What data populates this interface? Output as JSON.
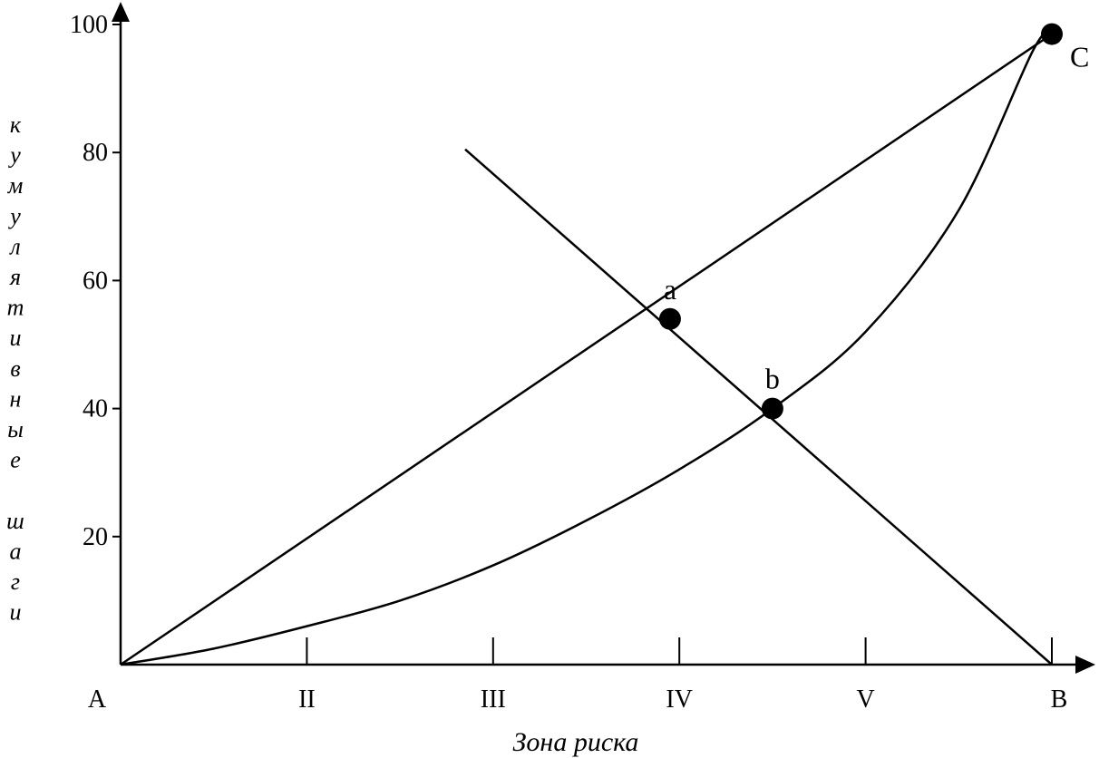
{
  "chart_data": {
    "type": "line",
    "title": "",
    "xlabel": "Зона риска",
    "ylabel": "кумулятивные шаги",
    "ylabel_letters": [
      "к",
      "у",
      "м",
      "у",
      "л",
      "я",
      "т",
      "и",
      "в",
      "н",
      "ы",
      "е",
      "",
      "ш",
      "а",
      "г",
      "и"
    ],
    "xlim": [
      1,
      6
    ],
    "ylim": [
      0,
      100
    ],
    "y_ticks": [
      20,
      40,
      60,
      80,
      100
    ],
    "y_tick_labels": [
      "20",
      "40",
      "60",
      "80",
      "100"
    ],
    "x_ticks": [
      1,
      2,
      3,
      4,
      5,
      6
    ],
    "x_tick_labels": [
      "A",
      "II",
      "III",
      "IV",
      "V",
      "B"
    ],
    "grid": false,
    "series": [
      {
        "points": [
          [
            1,
            0
          ],
          [
            6,
            98.5
          ]
        ]
      },
      {
        "points": [
          [
            1,
            0
          ],
          [
            1.5,
            2.5
          ],
          [
            2,
            6
          ],
          [
            2.5,
            10
          ],
          [
            3,
            15.5
          ],
          [
            3.5,
            22.5
          ],
          [
            4,
            30.5
          ],
          [
            4.5,
            40
          ],
          [
            5,
            52
          ],
          [
            5.5,
            71
          ],
          [
            5.9,
            96
          ],
          [
            6,
            98.5
          ]
        ]
      },
      {
        "points": [
          [
            2.85,
            80.5
          ],
          [
            6,
            0
          ]
        ]
      }
    ],
    "points": [
      {
        "label": "a",
        "x": 3.95,
        "y": 54
      },
      {
        "label": "b",
        "x": 4.5,
        "y": 40
      },
      {
        "label": "C",
        "x": 6,
        "y": 98.5
      }
    ]
  }
}
